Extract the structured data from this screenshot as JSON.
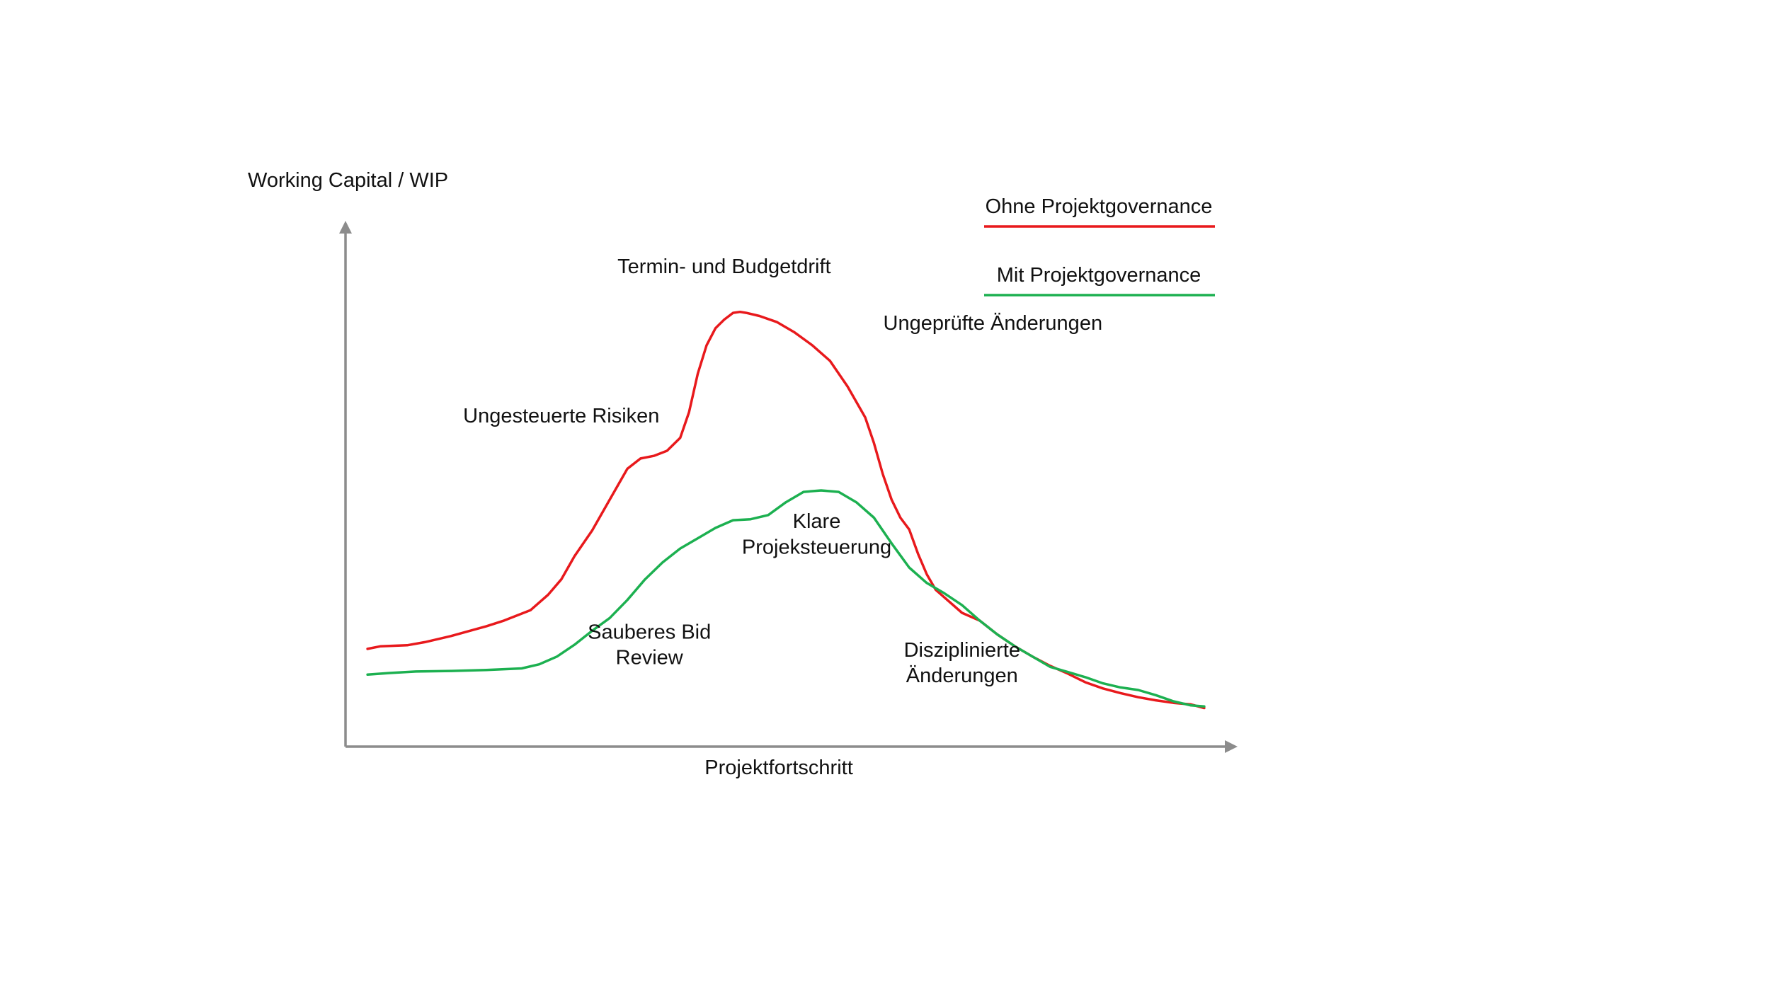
{
  "chart_data": {
    "type": "line",
    "title": "",
    "ylabel": "Working Capital / WIP",
    "xlabel": "Projektfortschritt",
    "xlim": [
      0,
      100
    ],
    "ylim": [
      0,
      100
    ],
    "grid": false,
    "legend_position": "top-right",
    "series": [
      {
        "name": "Ohne Projektgovernance",
        "color": "#e8191c",
        "x": [
          2.5,
          4,
          7,
          9,
          12,
          16,
          18,
          21,
          23,
          24.5,
          26,
          28,
          30,
          32,
          33.5,
          35,
          36.5,
          38,
          39,
          40,
          41,
          42,
          43,
          44,
          44.8,
          45.5,
          47,
          49,
          51,
          53,
          55,
          57,
          59,
          60,
          61,
          62,
          63,
          64,
          65,
          66,
          67,
          68,
          70,
          72,
          74,
          76,
          78,
          80,
          82,
          84,
          86,
          88,
          90,
          92,
          94,
          96,
          97.5
        ],
        "values": [
          19,
          19.5,
          19.7,
          20.3,
          21.5,
          23.4,
          24.5,
          26.5,
          29.5,
          32.5,
          37,
          42,
          48,
          54,
          56,
          56.5,
          57.5,
          60,
          65,
          72.5,
          78,
          81.3,
          83,
          84.3,
          84.5,
          84.3,
          83.7,
          82.5,
          80.5,
          78,
          75,
          70,
          64,
          59,
          53,
          48,
          44.5,
          42.2,
          37.5,
          33.5,
          30.5,
          29,
          26,
          24.5,
          21.8,
          19.5,
          17.5,
          15.7,
          14.2,
          12.5,
          11.3,
          10.4,
          9.6,
          9.0,
          8.5,
          8.2,
          7.5
        ]
      },
      {
        "name": "Mit Projektgovernance",
        "color": "#1cb050",
        "x": [
          2.5,
          5,
          8,
          12,
          16,
          20,
          22,
          24,
          26,
          28,
          30,
          32,
          34,
          36,
          38,
          40,
          42,
          44,
          46,
          48,
          50,
          52,
          54,
          56,
          58,
          60,
          62,
          64,
          66,
          68,
          70,
          72,
          74,
          76,
          78,
          80,
          82,
          84,
          86,
          88,
          90,
          92,
          94,
          96,
          97.5
        ],
        "values": [
          14,
          14.3,
          14.6,
          14.7,
          14.9,
          15.2,
          16,
          17.5,
          19.8,
          22.5,
          25,
          28.5,
          32.5,
          35.8,
          38.5,
          40.5,
          42.5,
          44,
          44.2,
          45,
          47.5,
          49.5,
          49.8,
          49.5,
          47.5,
          44.5,
          39.5,
          34.8,
          31.8,
          29.8,
          27.5,
          24.5,
          21.8,
          19.5,
          17.5,
          15.5,
          14.5,
          13.5,
          12.3,
          11.5,
          11,
          10,
          8.8,
          8,
          7.8
        ]
      }
    ],
    "annotations": [
      {
        "text": "Termin- und Budgetdrift",
        "x": 43,
        "y": 92
      },
      {
        "text": "Ungeprüfte Änderungen",
        "x": 73.5,
        "y": 81
      },
      {
        "text": "Ungesteuerte Risiken",
        "x": 24.5,
        "y": 63
      },
      {
        "text": "Klare",
        "x": 53.5,
        "y": 42.5
      },
      {
        "text": "Projeksteuerung",
        "x": 53.5,
        "y": 37.5
      },
      {
        "text": "Sauberes Bid",
        "x": 34.5,
        "y": 21
      },
      {
        "text": "Review",
        "x": 34.5,
        "y": 16
      },
      {
        "text": "Disziplinierte",
        "x": 70,
        "y": 17.5
      },
      {
        "text": "Änderungen",
        "x": 70,
        "y": 12.5
      }
    ]
  }
}
